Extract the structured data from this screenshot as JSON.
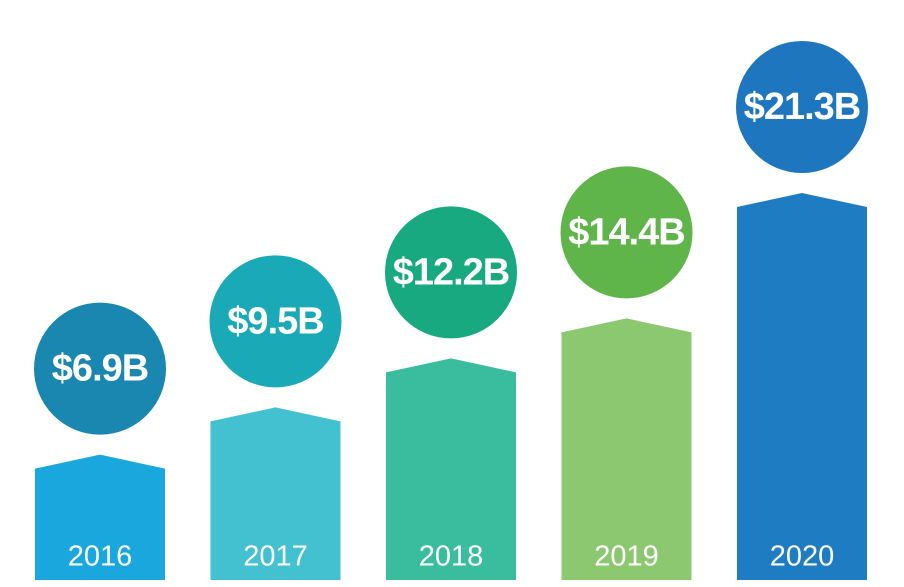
{
  "chart_data": {
    "type": "bar",
    "categories": [
      "2016",
      "2017",
      "2018",
      "2019",
      "2020"
    ],
    "values": [
      6.9,
      9.5,
      12.2,
      14.4,
      21.3
    ],
    "value_labels": [
      "$6.9B",
      "$9.5B",
      "$12.2B",
      "$14.4B",
      "$21.3B"
    ],
    "colors": [
      "#19a7dd",
      "#43c1d1",
      "#3abd9f",
      "#8cc870",
      "#1e7cc2"
    ],
    "label_colors": [
      "#1a87b1",
      "#1aa9b6",
      "#18a981",
      "#5fb54a",
      "#1e77be"
    ]
  }
}
